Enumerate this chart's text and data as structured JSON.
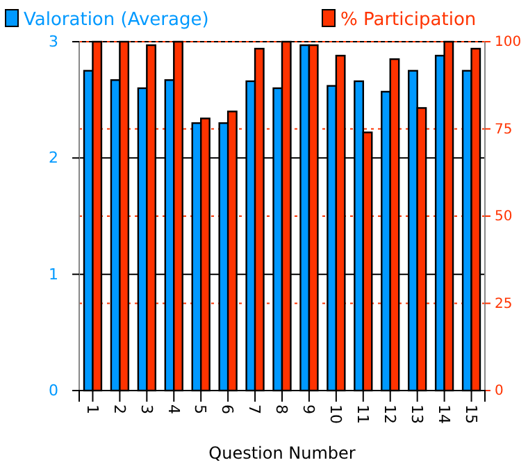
{
  "chart_data": {
    "type": "bar",
    "xlabel": "Question Number",
    "categories": [
      "1",
      "2",
      "3",
      "4",
      "5",
      "6",
      "7",
      "8",
      "9",
      "10",
      "11",
      "12",
      "13",
      "14",
      "15"
    ],
    "series": [
      {
        "name": "Valoration (Average)",
        "color": "#0099ff",
        "values": [
          2.75,
          2.67,
          2.6,
          2.67,
          2.3,
          2.3,
          2.66,
          2.6,
          2.97,
          2.62,
          2.66,
          2.57,
          2.75,
          2.88,
          2.75
        ]
      },
      {
        "name": "% Participation",
        "color": "#ff3300",
        "axis": "y2",
        "values": [
          100,
          100,
          99,
          100,
          78,
          80,
          98,
          100,
          99,
          96,
          74,
          95,
          81,
          100,
          98
        ]
      }
    ],
    "ylim": [
      0,
      3
    ],
    "yticks": [
      0,
      1,
      2,
      3
    ],
    "y2lim": [
      0,
      100
    ],
    "y2ticks": [
      0,
      25,
      50,
      75,
      100
    ],
    "grid": true,
    "legend": "top"
  }
}
